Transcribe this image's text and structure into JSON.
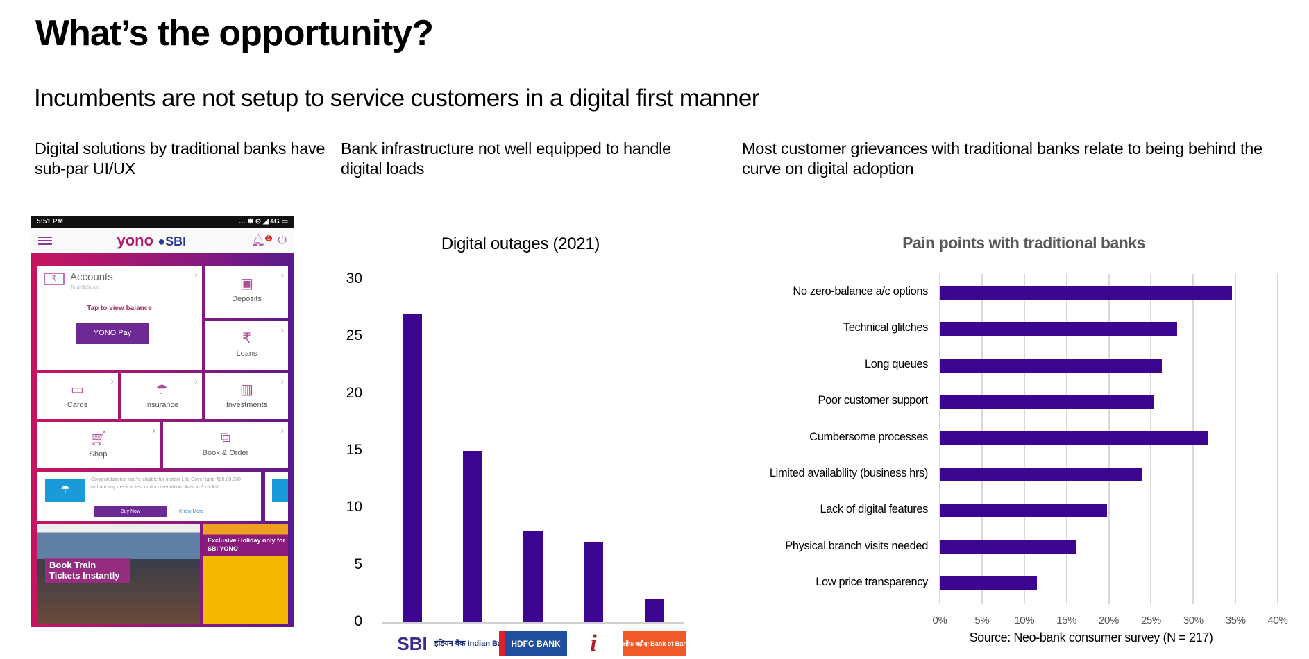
{
  "slide": {
    "title": "What’s the opportunity?",
    "subtitle": "Incumbents are not setup to service customers in a digital first manner",
    "columns": [
      {
        "heading": "Digital solutions by traditional banks have sub-par UI/UX"
      },
      {
        "heading": "Bank infrastructure not well equipped to handle digital loads"
      },
      {
        "heading": "Most customer grievances with traditional banks relate to being behind the curve on digital adoption"
      }
    ]
  },
  "phone": {
    "time": "5:51 PM",
    "status_icons": "… ✱ ⊙ ◢ 4G ▭",
    "brand": "yono",
    "brand_suffix": "SBI",
    "notif_count": "1",
    "accounts": {
      "label": "Accounts",
      "sub": "Total Balance",
      "tap": "Tap to view balance",
      "pay": "YONO Pay"
    },
    "tiles": [
      "Deposits",
      "Loans",
      "Cards",
      "Insurance",
      "Investments",
      "Shop",
      "Book & Order"
    ],
    "promo": {
      "text": "Congratulations! You're eligible for Instant Life Cover upto ₹20,00,000 without any medical test or documentation. Avail in 3 clicks!",
      "buy": "Buy Now",
      "know": "Know More"
    },
    "banner_left": "Book Train Tickets Instantly",
    "banner_right": "Exclusive Holiday only for SBI YONO"
  },
  "chart_data": [
    {
      "type": "bar",
      "title": "Digital outages (2021)",
      "categories": [
        "SBI",
        "Indian Bank",
        "HDFC Bank",
        "ICICI",
        "Bank of Baroda"
      ],
      "category_display": [
        "SBI",
        "इंडियन बैंक Indian Bank",
        "HDFC BANK",
        "i",
        "बैंक ऑफ़ बड़ौदा Bank of Baroda"
      ],
      "values": [
        27,
        15,
        8,
        7,
        2
      ],
      "ylim": [
        0,
        30
      ],
      "yticks": [
        0,
        5,
        10,
        15,
        20,
        25,
        30
      ],
      "grid": false,
      "bar_color": "#3c0690"
    },
    {
      "type": "bar",
      "orientation": "horizontal",
      "title": "Pain points with traditional banks",
      "categories": [
        "No zero-balance a/c options",
        "Technical glitches",
        "Long queues",
        "Poor customer support",
        "Cumbersome processes",
        "Limited availability (business hrs)",
        "Lack of digital features",
        "Physical branch visits needed",
        "Low price transparency"
      ],
      "values": [
        34.6,
        28.1,
        26.3,
        25.3,
        31.8,
        24.0,
        19.8,
        16.2,
        11.5
      ],
      "unit": "%",
      "xlim": [
        0,
        40
      ],
      "xticks": [
        "0%",
        "5%",
        "10%",
        "15%",
        "20%",
        "25%",
        "30%",
        "35%",
        "40%"
      ],
      "grid": true,
      "bar_color": "#3c0690",
      "source": "Source: Neo-bank consumer survey (N = 217)"
    }
  ]
}
